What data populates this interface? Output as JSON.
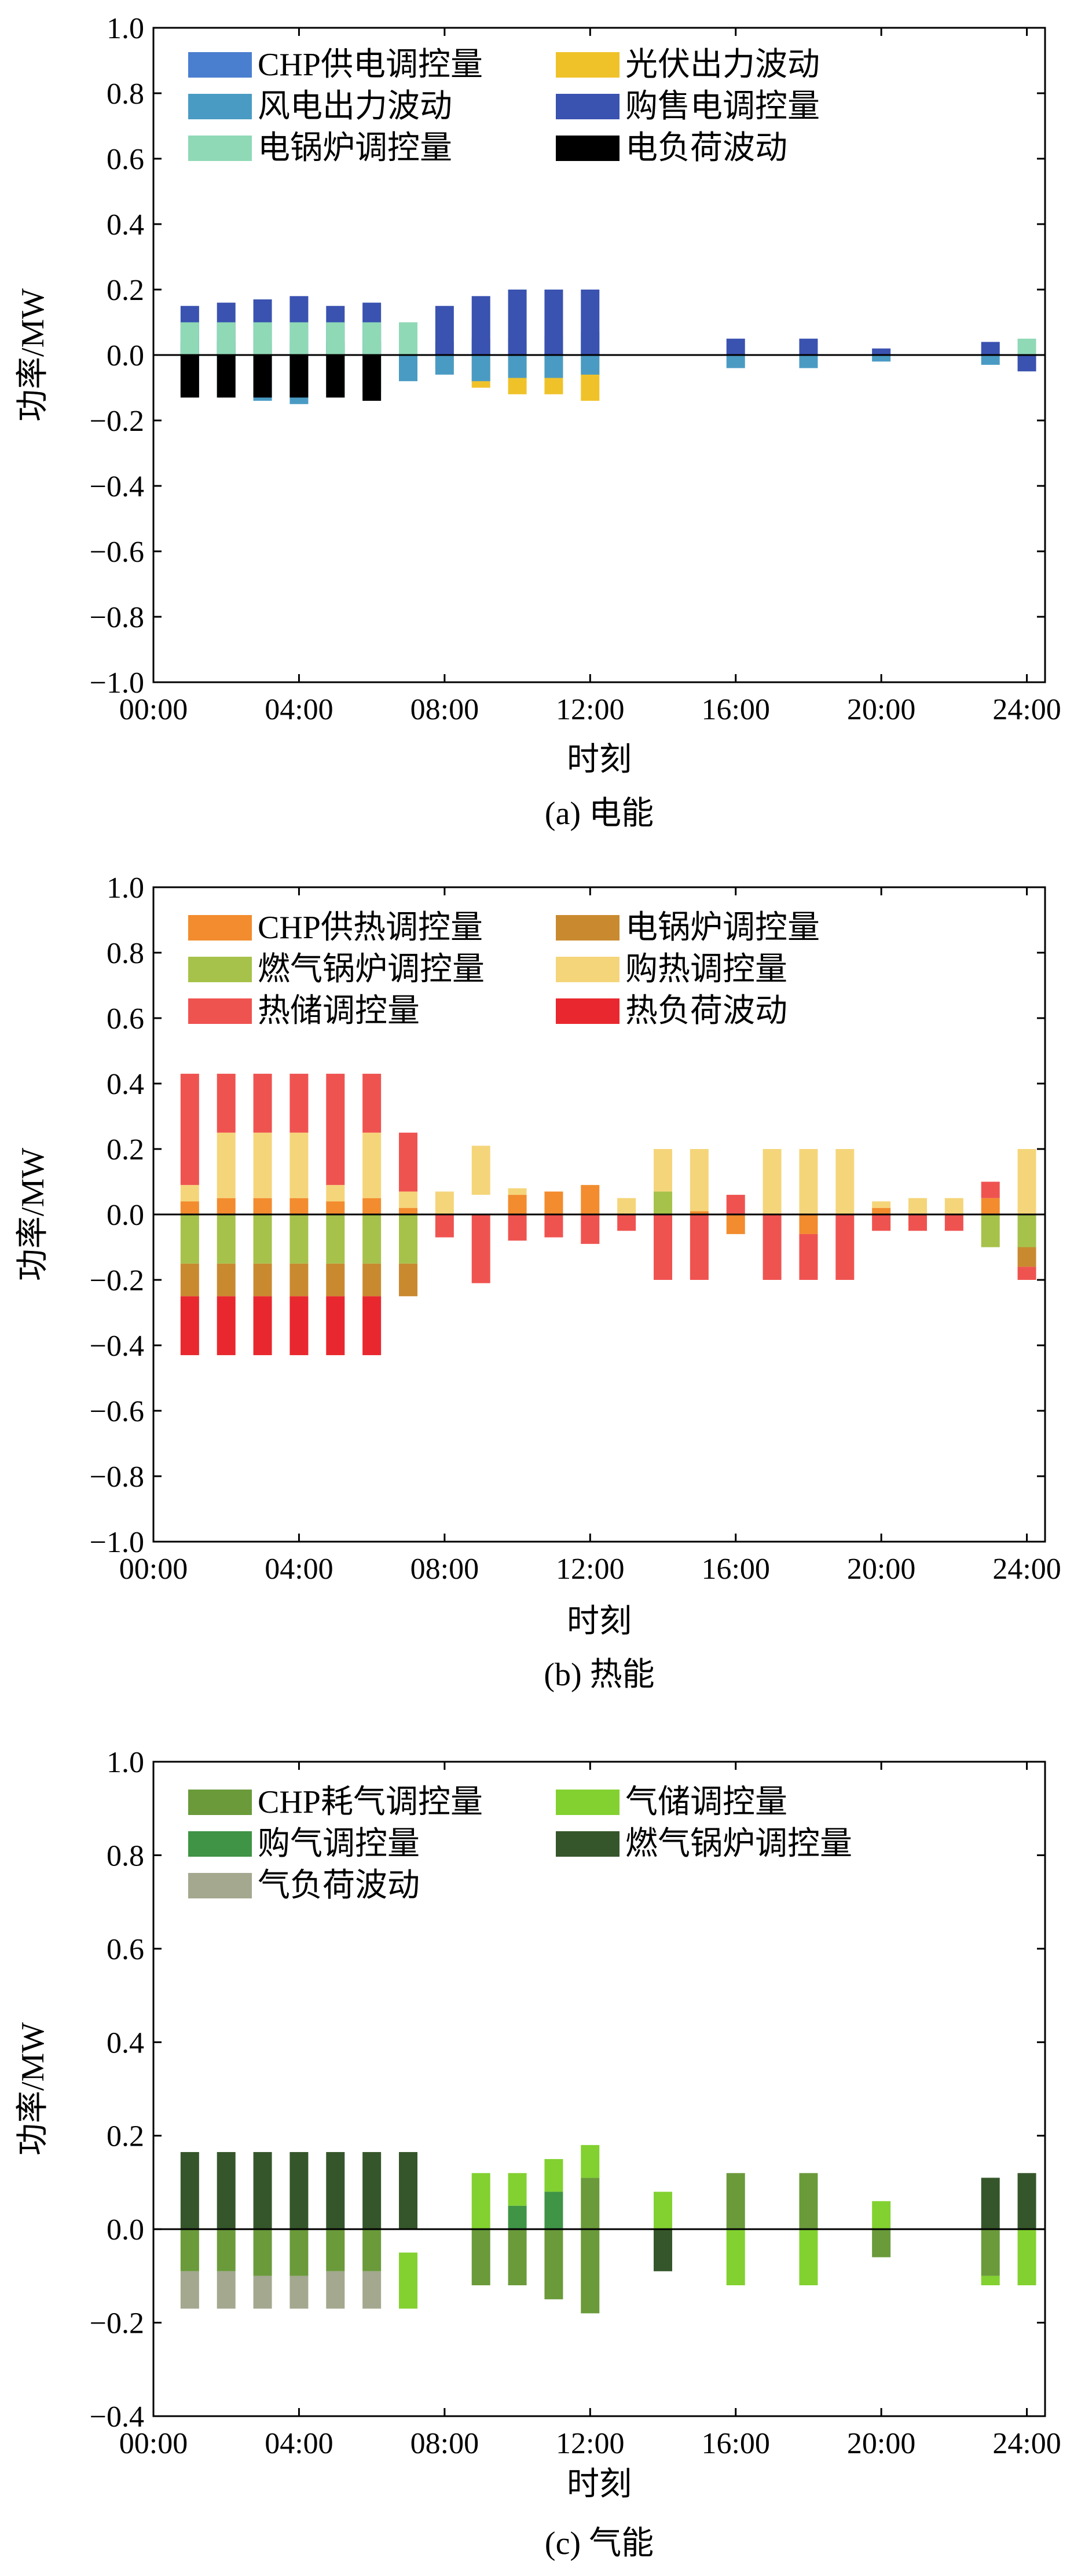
{
  "axis_label_common": {
    "ylabel": "功率/MW",
    "xlabel": "时刻"
  },
  "chart_data": [
    {
      "type": "bar",
      "stacked": true,
      "caption": "(a) 电能",
      "ylabel": "功率/MW",
      "xlabel": "时刻",
      "ylim": [
        -1.0,
        1.0
      ],
      "yticks": [
        1.0,
        0.8,
        0.6,
        0.4,
        0.2,
        0.0,
        -0.2,
        -0.4,
        -0.6,
        -0.8,
        -1.0
      ],
      "ytick_labels": [
        "1.0",
        "0.8",
        "0.6",
        "0.4",
        "0.2",
        "0.0",
        "−0.2",
        "−0.4",
        "−0.6",
        "−0.8",
        "−1.0"
      ],
      "xlim": [
        0,
        24.5
      ],
      "xticks": [
        0,
        4,
        8,
        12,
        16,
        20,
        24
      ],
      "xtick_labels": [
        "00:00",
        "04:00",
        "08:00",
        "12:00",
        "16:00",
        "20:00",
        "24:00"
      ],
      "legend_placement": "top-left",
      "series": [
        {
          "name": "CHP供电调控量",
          "color": "#4a7ecf",
          "points": []
        },
        {
          "name": "光伏出力波动",
          "color": "#f0c22a",
          "points": [
            [
              7,
              -0.03,
              0
            ],
            [
              8,
              -0.04,
              0
            ],
            [
              9,
              -0.1,
              0
            ],
            [
              10,
              -0.12,
              0
            ],
            [
              11,
              -0.12,
              0
            ],
            [
              12,
              -0.14,
              0
            ]
          ]
        },
        {
          "name": "风电出力波动",
          "color": "#4a9bc4",
          "points": [
            [
              1,
              -0.16,
              0.04
            ],
            [
              2,
              -0.17,
              0.04
            ],
            [
              3,
              -0.18,
              0.04
            ],
            [
              4,
              -0.19,
              0.04
            ],
            [
              5,
              -0.17,
              0.04
            ],
            [
              6,
              -0.15,
              0.04
            ],
            [
              7,
              -0.11,
              0.03
            ],
            [
              8,
              -0.1,
              0.04
            ],
            [
              9,
              -0.13,
              0.05
            ],
            [
              10,
              -0.12,
              0.05
            ],
            [
              11,
              -0.13,
              0.06
            ],
            [
              12,
              -0.13,
              0.07
            ],
            [
              16,
              -0.04,
              0
            ],
            [
              18,
              -0.04,
              0
            ],
            [
              20,
              -0.02,
              0
            ],
            [
              23,
              -0.03,
              0
            ]
          ]
        },
        {
          "name": "购售电调控量",
          "color": "#3a52b0",
          "points": [
            [
              1,
              0.15,
              0
            ],
            [
              2,
              0.16,
              0
            ],
            [
              3,
              0.17,
              0
            ],
            [
              4,
              0.18,
              0
            ],
            [
              5,
              0.15,
              0
            ],
            [
              6,
              0.16,
              0
            ],
            [
              7,
              0.01,
              0
            ],
            [
              8,
              0.15,
              0
            ],
            [
              9,
              0.18,
              0
            ],
            [
              10,
              0.2,
              0
            ],
            [
              11,
              0.2,
              0
            ],
            [
              12,
              0.2,
              0
            ],
            [
              16,
              0.05,
              0
            ],
            [
              18,
              0.05,
              0
            ],
            [
              20,
              0.02,
              0
            ],
            [
              23,
              0.04,
              0
            ],
            [
              24,
              -0.05,
              0
            ]
          ]
        },
        {
          "name": "电锅炉调控量",
          "color": "#8fd9b6",
          "points": [
            [
              1,
              0.1,
              0
            ],
            [
              2,
              0.1,
              0
            ],
            [
              3,
              0.1,
              0
            ],
            [
              4,
              0.1,
              0
            ],
            [
              5,
              0.1,
              0
            ],
            [
              6,
              0.1,
              0
            ],
            [
              7,
              0.1,
              0
            ],
            [
              24,
              0.05,
              0
            ]
          ]
        },
        {
          "name": "电负荷波动",
          "color": "#000000",
          "points": [
            [
              1,
              -0.13,
              0
            ],
            [
              2,
              -0.13,
              0
            ],
            [
              3,
              -0.13,
              0
            ],
            [
              4,
              -0.13,
              0
            ],
            [
              5,
              -0.13,
              0
            ],
            [
              6,
              -0.14,
              0
            ]
          ]
        }
      ]
    },
    {
      "type": "bar",
      "stacked": true,
      "caption": "(b) 热能",
      "ylabel": "功率/MW",
      "xlabel": "时刻",
      "ylim": [
        -1.0,
        1.0
      ],
      "yticks": [
        1.0,
        0.8,
        0.6,
        0.4,
        0.2,
        0.0,
        -0.2,
        -0.4,
        -0.6,
        -0.8,
        -1.0
      ],
      "ytick_labels": [
        "1.0",
        "0.8",
        "0.6",
        "0.4",
        "0.2",
        "0.0",
        "−0.2",
        "−0.4",
        "−0.6",
        "−0.8",
        "−1.0"
      ],
      "xlim": [
        0,
        24.5
      ],
      "xticks": [
        0,
        4,
        8,
        12,
        16,
        20,
        24
      ],
      "xtick_labels": [
        "00:00",
        "04:00",
        "08:00",
        "12:00",
        "16:00",
        "20:00",
        "24:00"
      ],
      "legend_placement": "top-left",
      "series": [
        {
          "name": "CHP供热调控量",
          "color": "#f28c2e",
          "points": [
            [
              1,
              0.04,
              0
            ],
            [
              2,
              0.05,
              0
            ],
            [
              3,
              0.05,
              0
            ],
            [
              4,
              0.05,
              0
            ],
            [
              5,
              0.04,
              0
            ],
            [
              6,
              0.05,
              0
            ],
            [
              7,
              0.02,
              0
            ],
            [
              10,
              0.06,
              0
            ],
            [
              11,
              0.07,
              0
            ],
            [
              12,
              0.09,
              0
            ],
            [
              15,
              0.01,
              0
            ],
            [
              16,
              -0.06,
              0
            ],
            [
              18,
              -0.06,
              0
            ],
            [
              20,
              0.02,
              0
            ],
            [
              23,
              0.05,
              0
            ]
          ]
        },
        {
          "name": "电锅炉调控量",
          "color": "#c98a2f",
          "points": [
            [
              1,
              -0.1,
              -0.15
            ],
            [
              2,
              -0.1,
              -0.15
            ],
            [
              3,
              -0.1,
              -0.15
            ],
            [
              4,
              -0.1,
              -0.15
            ],
            [
              5,
              -0.1,
              -0.15
            ],
            [
              6,
              -0.1,
              -0.15
            ],
            [
              7,
              -0.1,
              -0.15
            ],
            [
              24,
              -0.06,
              -0.1
            ]
          ]
        },
        {
          "name": "燃气锅炉调控量",
          "color": "#a6c24a",
          "points": [
            [
              1,
              -0.15,
              0
            ],
            [
              2,
              -0.15,
              0
            ],
            [
              3,
              -0.15,
              0
            ],
            [
              4,
              -0.15,
              0
            ],
            [
              5,
              -0.15,
              0
            ],
            [
              6,
              -0.15,
              0
            ],
            [
              7,
              -0.15,
              0
            ],
            [
              14,
              0.07,
              0
            ],
            [
              23,
              -0.1,
              0
            ],
            [
              24,
              -0.1,
              0
            ]
          ]
        },
        {
          "name": "购热调控量",
          "color": "#f5d57a",
          "points": [
            [
              1,
              0.05,
              0.04
            ],
            [
              2,
              0.2,
              0.05
            ],
            [
              3,
              0.2,
              0.05
            ],
            [
              4,
              0.2,
              0.05
            ],
            [
              5,
              0.05,
              0.04
            ],
            [
              6,
              0.2,
              0.05
            ],
            [
              7,
              0.05,
              0.02
            ],
            [
              8,
              0.07,
              0
            ],
            [
              9,
              0.15,
              0.06
            ],
            [
              10,
              0.02,
              0.06
            ],
            [
              13,
              0.05,
              0
            ],
            [
              14,
              0.13,
              0.07
            ],
            [
              15,
              0.19,
              0.01
            ],
            [
              17,
              0.2,
              0
            ],
            [
              18,
              0.2,
              0
            ],
            [
              19,
              0.2,
              0
            ],
            [
              20,
              0.02,
              0.02
            ],
            [
              21,
              0.05,
              0
            ],
            [
              22,
              0.05,
              0
            ],
            [
              24,
              0.2,
              0
            ]
          ]
        },
        {
          "name": "热储调控量",
          "color": "#ef5350",
          "points": [
            [
              1,
              0.34,
              0.09
            ],
            [
              2,
              0.18,
              0.25
            ],
            [
              3,
              0.18,
              0.25
            ],
            [
              4,
              0.18,
              0.25
            ],
            [
              5,
              0.34,
              0.09
            ],
            [
              6,
              0.18,
              0.25
            ],
            [
              7,
              0.18,
              0.07
            ],
            [
              8,
              -0.07,
              0
            ],
            [
              9,
              -0.21,
              0
            ],
            [
              10,
              -0.08,
              0
            ],
            [
              11,
              -0.07,
              0
            ],
            [
              12,
              -0.09,
              0
            ],
            [
              13,
              -0.05,
              0
            ],
            [
              14,
              -0.2,
              0
            ],
            [
              15,
              -0.2,
              0
            ],
            [
              16,
              0.06,
              0
            ],
            [
              17,
              -0.2,
              0
            ],
            [
              18,
              -0.14,
              -0.06
            ],
            [
              19,
              -0.2,
              0
            ],
            [
              20,
              -0.05,
              0
            ],
            [
              21,
              -0.05,
              0
            ],
            [
              22,
              -0.05,
              0
            ],
            [
              23,
              0.05,
              0.05
            ],
            [
              24,
              -0.04,
              -0.16
            ]
          ]
        },
        {
          "name": "热负荷波动",
          "color": "#e8282e",
          "points": [
            [
              1,
              -0.18,
              -0.25
            ],
            [
              2,
              -0.18,
              -0.25
            ],
            [
              3,
              -0.18,
              -0.25
            ],
            [
              4,
              -0.18,
              -0.25
            ],
            [
              5,
              -0.18,
              -0.25
            ],
            [
              6,
              -0.18,
              -0.25
            ]
          ]
        }
      ]
    },
    {
      "type": "bar",
      "stacked": true,
      "caption": "(c) 气能",
      "ylabel": "功率/MW",
      "xlabel": "时刻",
      "ylim": [
        -0.4,
        1.0
      ],
      "yticks": [
        1.0,
        0.8,
        0.6,
        0.4,
        0.2,
        0.0,
        -0.2,
        -0.4
      ],
      "ytick_labels": [
        "1.0",
        "0.8",
        "0.6",
        "0.4",
        "0.2",
        "0.0",
        "−0.2",
        "−0.4"
      ],
      "xlim": [
        0,
        24.5
      ],
      "xticks": [
        0,
        4,
        8,
        12,
        16,
        20,
        24
      ],
      "xtick_labels": [
        "00:00",
        "04:00",
        "08:00",
        "12:00",
        "16:00",
        "20:00",
        "24:00"
      ],
      "legend_placement": "top-left",
      "series": [
        {
          "name": "CHP耗气调控量",
          "color": "#6a9a3a",
          "points": [
            [
              1,
              -0.09,
              0
            ],
            [
              2,
              -0.09,
              0
            ],
            [
              3,
              -0.1,
              0
            ],
            [
              4,
              -0.1,
              0
            ],
            [
              5,
              -0.09,
              0
            ],
            [
              6,
              -0.09,
              0
            ],
            [
              9,
              -0.12,
              0
            ],
            [
              10,
              -0.12,
              0
            ],
            [
              11,
              -0.15,
              0
            ],
            [
              12,
              -0.18,
              0
            ],
            [
              12,
              0.11,
              0
            ],
            [
              16,
              0.12,
              0
            ],
            [
              18,
              0.12,
              0
            ],
            [
              20,
              -0.06,
              0
            ],
            [
              23,
              -0.1,
              0
            ]
          ]
        },
        {
          "name": "气储调控量",
          "color": "#82d130",
          "points": [
            [
              7,
              -0.12,
              -0.05
            ],
            [
              9,
              0.12,
              0
            ],
            [
              10,
              0.07,
              0.05
            ],
            [
              11,
              0.07,
              0.08
            ],
            [
              12,
              0.07,
              0.11
            ],
            [
              14,
              0.08,
              0
            ],
            [
              16,
              -0.12,
              0
            ],
            [
              18,
              -0.12,
              0
            ],
            [
              20,
              0.06,
              0
            ],
            [
              23,
              -0.02,
              -0.1
            ],
            [
              24,
              -0.12,
              0
            ]
          ]
        },
        {
          "name": "购气调控量",
          "color": "#3f9446",
          "points": [
            [
              10,
              0.05,
              0
            ],
            [
              11,
              0.08,
              0
            ]
          ]
        },
        {
          "name": "燃气锅炉调控量",
          "color": "#35562a",
          "points": [
            [
              1,
              0.165,
              0
            ],
            [
              2,
              0.165,
              0
            ],
            [
              3,
              0.165,
              0
            ],
            [
              4,
              0.165,
              0
            ],
            [
              5,
              0.165,
              0
            ],
            [
              6,
              0.165,
              0
            ],
            [
              7,
              0.165,
              0
            ],
            [
              14,
              -0.09,
              0
            ],
            [
              23,
              0.11,
              0
            ],
            [
              24,
              0.12,
              0
            ]
          ]
        },
        {
          "name": "气负荷波动",
          "color": "#a3a88f",
          "points": [
            [
              1,
              -0.08,
              -0.09
            ],
            [
              2,
              -0.08,
              -0.09
            ],
            [
              3,
              -0.07,
              -0.1
            ],
            [
              4,
              -0.07,
              -0.1
            ],
            [
              5,
              -0.08,
              -0.09
            ],
            [
              6,
              -0.08,
              -0.09
            ]
          ]
        }
      ]
    }
  ]
}
